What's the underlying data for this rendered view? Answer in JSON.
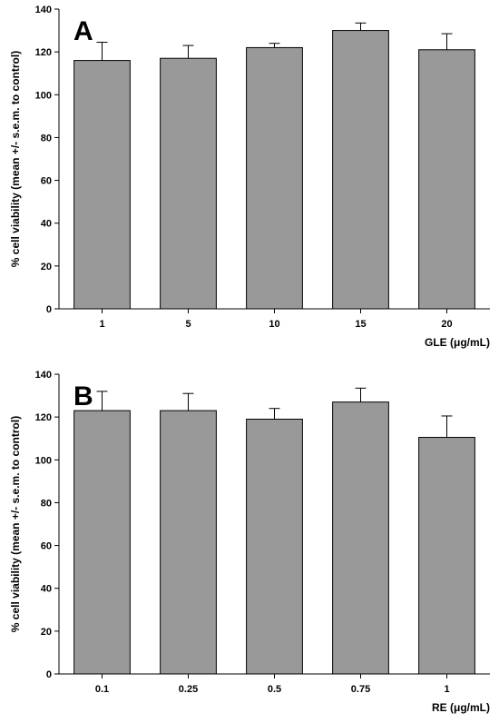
{
  "chart_data": [
    {
      "type": "bar",
      "panel_label": "A",
      "categories": [
        "1",
        "5",
        "10",
        "15",
        "20"
      ],
      "values": [
        116,
        117,
        122,
        130,
        121
      ],
      "errors": [
        8.5,
        6,
        2,
        3.5,
        7.5
      ],
      "ylabel": "% cell viability (mean +/- s.e.m. to control)",
      "xlabel": "GLE (μg/mL)",
      "ylim": [
        0,
        140
      ],
      "yticks": [
        0,
        20,
        40,
        60,
        80,
        100,
        120,
        140
      ],
      "bar_color": "#999999",
      "grid": false
    },
    {
      "type": "bar",
      "panel_label": "B",
      "categories": [
        "0.1",
        "0.25",
        "0.5",
        "0.75",
        "1"
      ],
      "values": [
        123,
        123,
        119,
        127,
        110.5
      ],
      "errors": [
        9,
        8,
        5,
        6.5,
        10
      ],
      "ylabel": "% cell viability (mean +/- s.e.m. to control)",
      "xlabel": "RE (μg/mL)",
      "ylim": [
        0,
        140
      ],
      "yticks": [
        0,
        20,
        40,
        60,
        80,
        100,
        120,
        140
      ],
      "bar_color": "#999999",
      "grid": false
    }
  ]
}
